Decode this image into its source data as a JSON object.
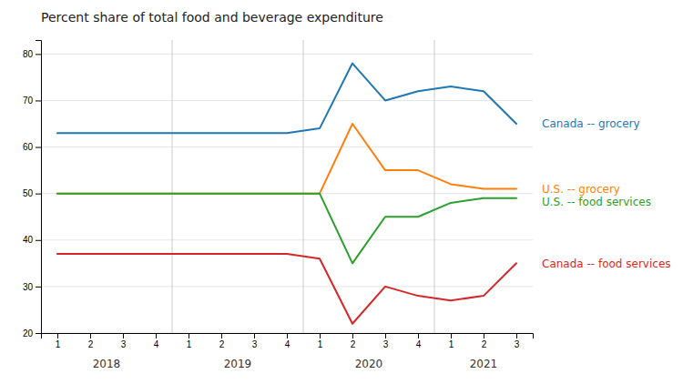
{
  "chart_data": {
    "type": "line",
    "title": "Percent share of total food and beverage expenditure",
    "categories": [
      "1",
      "2",
      "3",
      "4",
      "1",
      "2",
      "3",
      "4",
      "1",
      "2",
      "3",
      "4",
      "1",
      "2",
      "3"
    ],
    "series": [
      {
        "name": "Canada -- grocery",
        "values": [
          63,
          63,
          63,
          63,
          63,
          63,
          63,
          63,
          64,
          78,
          70,
          72,
          73,
          72,
          65
        ]
      },
      {
        "name": "U.S. -- grocery",
        "values": [
          50,
          50,
          50,
          50,
          50,
          50,
          50,
          50,
          50,
          65,
          55,
          55,
          52,
          51,
          51
        ]
      },
      {
        "name": "U.S. -- food services",
        "values": [
          50,
          50,
          50,
          50,
          50,
          50,
          50,
          50,
          50,
          35,
          45,
          45,
          48,
          49,
          49
        ]
      },
      {
        "name": "Canada -- food services",
        "values": [
          37,
          37,
          37,
          37,
          37,
          37,
          37,
          37,
          36,
          22,
          30,
          28,
          27,
          28,
          35
        ]
      }
    ],
    "ylim": [
      20,
      83
    ],
    "yticks": [
      20,
      30,
      40,
      50,
      60,
      70,
      80
    ],
    "grid": true,
    "annotations": [
      "2018",
      "2019",
      "2020",
      "2021"
    ]
  }
}
